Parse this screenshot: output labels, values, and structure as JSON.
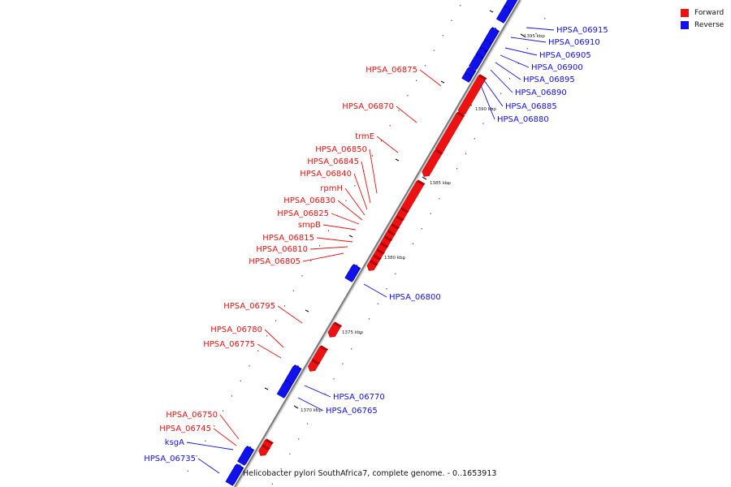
{
  "legend": {
    "forward": {
      "label": "Forward",
      "color": "#ee1111"
    },
    "reverse": {
      "label": "Reverse",
      "color": "#1111ee"
    }
  },
  "caption": "Helicobacter pylori SouthAfrica7, complete genome. - 0..1653913",
  "scale_labels": [
    "1395 kbp",
    "1390 kbp",
    "1385 kbp",
    "1380 kbp",
    "1375 kbp",
    "1370 kbp"
  ],
  "genes_forward": [
    "HPSA_06875",
    "HPSA_06870",
    "trmE",
    "HPSA_06850",
    "HPSA_06845",
    "HPSA_06840",
    "rpmH",
    "HPSA_06830",
    "HPSA_06825",
    "smpB",
    "HPSA_06815",
    "HPSA_06810",
    "HPSA_06805",
    "HPSA_06795",
    "HPSA_06780",
    "HPSA_06775",
    "HPSA_06750",
    "HPSA_06745"
  ],
  "genes_reverse": [
    "HPSA_06915",
    "HPSA_06910",
    "HPSA_06905",
    "HPSA_06900",
    "HPSA_06895",
    "HPSA_06890",
    "HPSA_06885",
    "HPSA_06880",
    "HPSA_06800",
    "HPSA_06770",
    "HPSA_06765",
    "ksgA",
    "HPSA_06735"
  ]
}
